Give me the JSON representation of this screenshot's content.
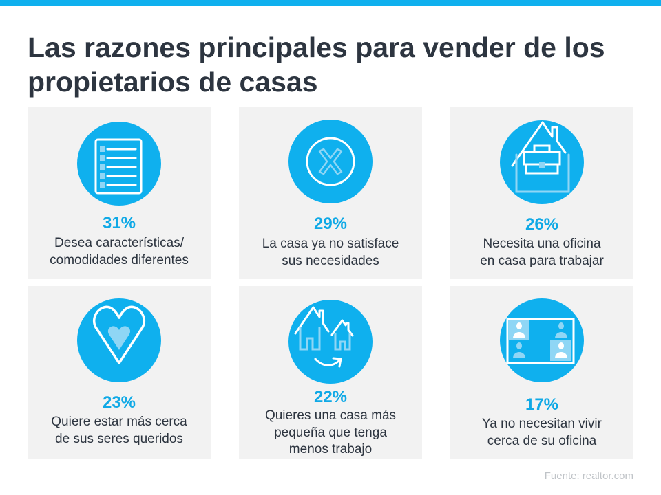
{
  "title": "Las razones principales para vender de los propietarios de casas",
  "accent_color": "#0fb0ee",
  "cards": [
    {
      "icon": "checklist-icon",
      "percent": "31%",
      "lines": [
        "Desea características/",
        "comodidades diferentes"
      ]
    },
    {
      "icon": "x-circle-icon",
      "percent": "29%",
      "lines": [
        "La casa ya no satisface",
        "sus necesidades"
      ]
    },
    {
      "icon": "home-office-icon",
      "percent": "26%",
      "lines": [
        "Necesita una oficina",
        "en casa para trabajar"
      ]
    },
    {
      "icon": "heart-icon",
      "percent": "23%",
      "lines": [
        "Quiere estar más cerca",
        "de sus seres queridos"
      ]
    },
    {
      "icon": "downsize-houses-icon",
      "percent": "22%",
      "lines": [
        "Quieres una casa más",
        "pequeña que tenga",
        "menos trabajo"
      ]
    },
    {
      "icon": "video-call-icon",
      "percent": "17%",
      "lines": [
        "Ya no necesitan vivir",
        "cerca de su oficina"
      ]
    }
  ],
  "source": "Fuente:  realtor.com"
}
